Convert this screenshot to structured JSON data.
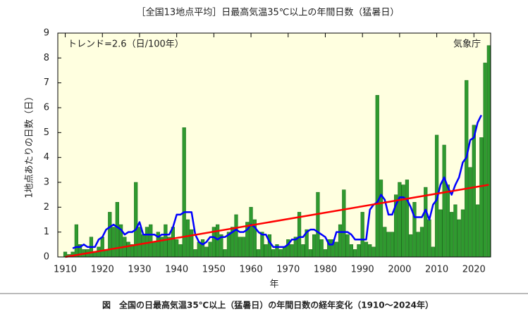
{
  "chart_data": {
    "type": "bar",
    "title": "［全国13地点平均］日最高気温35℃以上の年間日数（猛暑日）",
    "ylabel": "1地点あたりの日数（日）",
    "xlabel": "年",
    "annotations": [
      "トレンド=2.6（日/100年）",
      "気象庁"
    ],
    "caption": "図　全国の日最高気温35℃以上（猛暑日）の年間日数の経年変化（1910〜2024年）",
    "x": [
      1910,
      1911,
      1912,
      1913,
      1914,
      1915,
      1916,
      1917,
      1918,
      1919,
      1920,
      1921,
      1922,
      1923,
      1924,
      1925,
      1926,
      1927,
      1928,
      1929,
      1930,
      1931,
      1932,
      1933,
      1934,
      1935,
      1936,
      1937,
      1938,
      1939,
      1940,
      1941,
      1942,
      1943,
      1944,
      1945,
      1946,
      1947,
      1948,
      1949,
      1950,
      1951,
      1952,
      1953,
      1954,
      1955,
      1956,
      1957,
      1958,
      1959,
      1960,
      1961,
      1962,
      1963,
      1964,
      1965,
      1966,
      1967,
      1968,
      1969,
      1970,
      1971,
      1972,
      1973,
      1974,
      1975,
      1976,
      1977,
      1978,
      1979,
      1980,
      1981,
      1982,
      1983,
      1984,
      1985,
      1986,
      1987,
      1988,
      1989,
      1990,
      1991,
      1992,
      1993,
      1994,
      1995,
      1996,
      1997,
      1998,
      1999,
      2000,
      2001,
      2002,
      2003,
      2004,
      2005,
      2006,
      2007,
      2008,
      2009,
      2010,
      2011,
      2012,
      2013,
      2014,
      2015,
      2016,
      2017,
      2018,
      2019,
      2020,
      2021,
      2022,
      2023,
      2024
    ],
    "series": [
      {
        "type": "bar",
        "color": "#2f9a2f",
        "values": [
          0.2,
          0.1,
          0.2,
          1.3,
          0.5,
          0.3,
          0.3,
          0.8,
          0.2,
          0.4,
          0.8,
          0.3,
          1.8,
          1.2,
          2.2,
          1.3,
          0.8,
          0.6,
          0.5,
          3.0,
          1.2,
          0.9,
          1.2,
          1.3,
          0.6,
          1.0,
          0.8,
          1.3,
          0.8,
          1.2,
          0.7,
          0.5,
          5.2,
          1.5,
          1.1,
          0.3,
          0.6,
          0.7,
          0.4,
          0.6,
          1.2,
          1.3,
          0.9,
          0.3,
          1.0,
          1.2,
          1.7,
          0.8,
          0.8,
          1.4,
          2.0,
          1.5,
          0.3,
          1.0,
          0.5,
          0.9,
          0.3,
          0.5,
          0.3,
          0.4,
          0.7,
          0.5,
          0.8,
          1.8,
          0.5,
          1.1,
          0.3,
          0.9,
          2.6,
          0.7,
          0.3,
          0.7,
          0.7,
          0.6,
          1.3,
          2.7,
          0.9,
          0.5,
          0.3,
          0.5,
          1.8,
          0.6,
          0.5,
          0.4,
          6.5,
          3.1,
          1.2,
          1.0,
          1.0,
          2.5,
          3.0,
          2.9,
          3.1,
          0.9,
          2.2,
          1.0,
          1.2,
          2.8,
          1.5,
          0.4,
          4.9,
          1.9,
          4.5,
          2.9,
          1.8,
          2.1,
          1.5,
          1.9,
          7.1,
          3.6,
          5.3,
          2.1,
          4.8,
          7.8,
          8.5
        ]
      },
      {
        "type": "line",
        "color": "#0000ff",
        "values": [
          null,
          null,
          0.35,
          0.4,
          0.4,
          0.5,
          0.4,
          0.4,
          0.4,
          0.7,
          0.8,
          1.1,
          1.2,
          1.3,
          1.2,
          1.1,
          0.9,
          1.0,
          1.0,
          1.1,
          1.4,
          0.9,
          0.9,
          0.9,
          0.9,
          0.8,
          0.9,
          0.9,
          0.9,
          1.2,
          1.7,
          1.7,
          1.8,
          1.8,
          1.8,
          0.9,
          0.6,
          0.5,
          0.6,
          0.8,
          0.8,
          0.7,
          0.8,
          0.8,
          0.9,
          1.0,
          1.1,
          1.0,
          1.0,
          1.1,
          1.3,
          1.2,
          1.0,
          0.9,
          0.9,
          0.6,
          0.4,
          0.4,
          0.4,
          0.4,
          0.5,
          0.7,
          0.7,
          0.8,
          0.8,
          1.0,
          1.1,
          1.1,
          1.0,
          0.9,
          0.8,
          0.5,
          0.5,
          1.0,
          1.0,
          1.0,
          1.0,
          0.9,
          0.7,
          0.7,
          0.7,
          0.7,
          1.9,
          2.1,
          2.2,
          2.5,
          2.3,
          1.7,
          1.7,
          2.1,
          2.4,
          2.4,
          2.3,
          2.0,
          1.6,
          1.6,
          1.6,
          1.9,
          1.5,
          2.1,
          2.3,
          2.9,
          3.2,
          2.8,
          2.5,
          2.9,
          3.2,
          3.8,
          4.0,
          4.7,
          4.8,
          5.4,
          5.7,
          null,
          null
        ]
      },
      {
        "type": "trend",
        "color": "#ff0000",
        "x": [
          1910,
          2024
        ],
        "values": [
          0,
          2.9
        ]
      }
    ],
    "xlim": [
      1908,
      2024.5
    ],
    "xticks": [
      1910,
      1920,
      1930,
      1940,
      1950,
      1960,
      1970,
      1980,
      1990,
      2000,
      2010,
      2020
    ],
    "ylim": [
      0,
      9
    ],
    "yticks": [
      0,
      1,
      2,
      3,
      4,
      5,
      6,
      7,
      8,
      9
    ],
    "background": "#ffffe0"
  }
}
